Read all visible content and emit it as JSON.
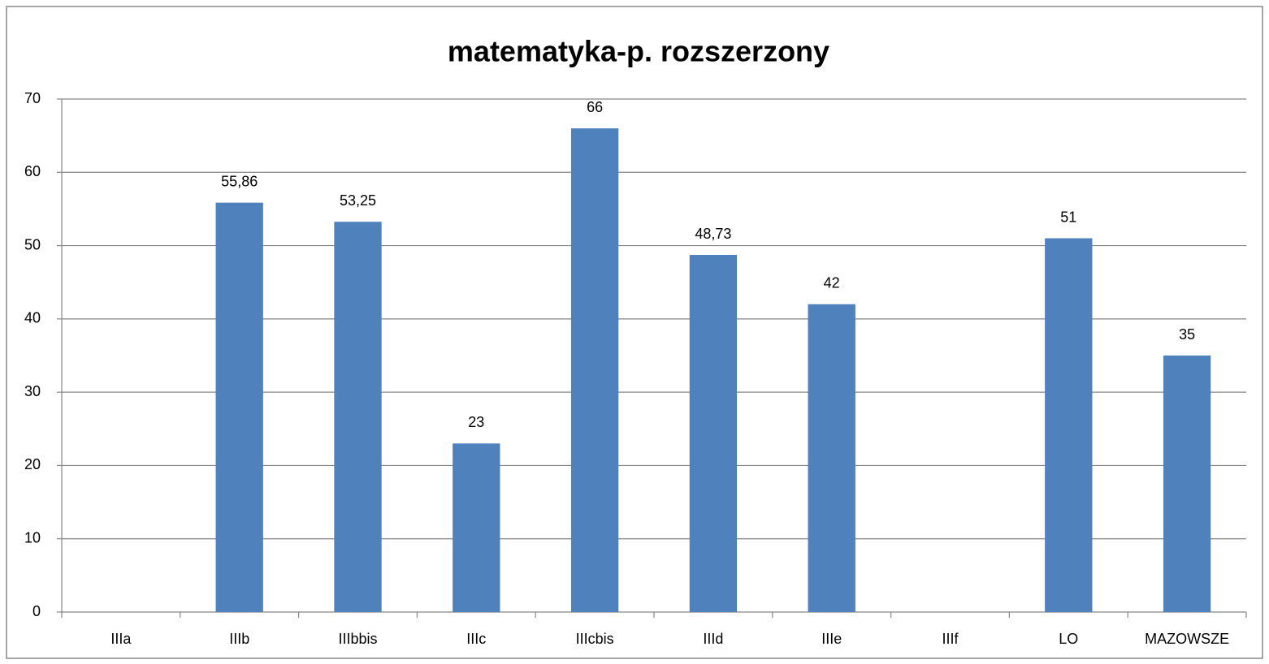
{
  "chart_data": {
    "type": "bar",
    "title": "matematyka-p. rozszerzony",
    "categories": [
      "IIIa",
      "IIIb",
      "IIIbbis",
      "IIIc",
      "IIIcbis",
      "IIId",
      "IIIe",
      "IIIf",
      "LO",
      "MAZOWSZE"
    ],
    "values": [
      null,
      55.86,
      53.25,
      23,
      66,
      48.73,
      42,
      null,
      51,
      35
    ],
    "value_labels": [
      null,
      "55,86",
      "53,25",
      "23",
      "66",
      "48,73",
      "42",
      null,
      "51",
      "35"
    ],
    "color": "#4f81bd",
    "ylim": [
      0,
      70
    ],
    "yticks": [
      0,
      10,
      20,
      30,
      40,
      50,
      60,
      70
    ],
    "grid": true
  }
}
